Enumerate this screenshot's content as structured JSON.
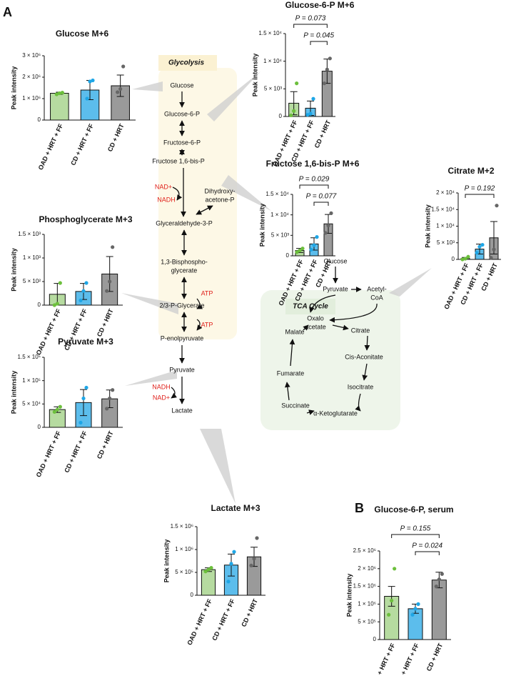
{
  "panel_labels": [
    "A",
    "B"
  ],
  "diagram": {
    "glycolysis_title": "Glycolysis",
    "tca_title": "TCA Cycle",
    "glycolysis_nodes": [
      "Glucose",
      "Glucose-6-P",
      "Fructose-6-P",
      "Fructose 1,6-bis-P",
      "NAD+",
      "NADH",
      "Dihydroxy-",
      "acetone-P",
      "Glyceraldehyde-3-P",
      "1,3-Bisphospho-",
      "glycerate",
      "ATP",
      "2/3-P-Glycerate",
      "ATP",
      "P-enolpyruvate",
      "Pyruvate",
      "NADH",
      "NAD+",
      "Lactate"
    ],
    "tca_nodes": [
      "Glucose",
      "Pyruvate",
      "Acetyl-",
      "CoA",
      "Oxalo",
      "acetate",
      "Citrate",
      "Cis-Aconitate",
      "Isocitrate",
      "α-Ketoglutarate",
      "Succinate",
      "Fumarate",
      "Malate"
    ]
  },
  "chart_data": [
    {
      "type": "bar",
      "title": "Glucose M+6",
      "ylabel": "Peak intensity",
      "categories": [
        "OAD + HRT + FF",
        "CD + HRT + FF",
        "CD + HRT"
      ],
      "colors": [
        "#b6dba0",
        "#5cbdec",
        "#9a9a9a"
      ],
      "point_colors": [
        "#6cbf3c",
        "#1ea6e6",
        "#666666"
      ],
      "values": [
        1250000,
        1400000,
        1600000
      ],
      "errors": [
        50000,
        450000,
        500000
      ],
      "points": [
        [
          1200000,
          1250000,
          1280000
        ],
        [
          1000000,
          1800000,
          1850000
        ],
        [
          1300000,
          1450000,
          2500000
        ]
      ],
      "ylim": [
        0,
        3000000
      ],
      "yticks": [
        0,
        {
          "value": 1000000,
          "label": "1 × 10⁶"
        },
        {
          "value": 2000000,
          "label": "2 × 10⁶"
        },
        {
          "value": 3000000,
          "label": "3 × 10⁶"
        }
      ],
      "comparisons": []
    },
    {
      "type": "bar",
      "title": "Glucose-6-P M+6",
      "ylabel": "Peak intensity",
      "categories": [
        "OAD + HRT + FF",
        "CD + HRT + FF",
        "CD + HRT"
      ],
      "colors": [
        "#b6dba0",
        "#5cbdec",
        "#9a9a9a"
      ],
      "point_colors": [
        "#6cbf3c",
        "#1ea6e6",
        "#666666"
      ],
      "values": [
        2400,
        1500,
        8200
      ],
      "errors": [
        2100,
        1300,
        2200
      ],
      "points": [
        [
          200,
          1000,
          6000
        ],
        [
          300,
          500,
          3200
        ],
        [
          6000,
          8500,
          10500
        ]
      ],
      "ylim": [
        0,
        15000
      ],
      "yticks": [
        0,
        {
          "value": 5000,
          "label": "5 × 10³"
        },
        {
          "value": 10000,
          "label": "1 × 10⁴"
        },
        {
          "value": 15000,
          "label": "1.5 × 10⁴"
        }
      ],
      "comparisons": [
        {
          "label": "P = 0.073",
          "groups": [
            "OAD + HRT + FF",
            "CD + HRT"
          ]
        },
        {
          "label": "P = 0.045",
          "groups": [
            "CD + HRT + FF",
            "CD + HRT"
          ]
        }
      ]
    },
    {
      "type": "bar",
      "title": "Fructose 1,6-bis-P  M+6",
      "ylabel": "Peak intensity",
      "categories": [
        "OAD + HRT + FF",
        "CD + HRT + FF",
        "CD + HRT"
      ],
      "colors": [
        "#b6dba0",
        "#5cbdec",
        "#9a9a9a"
      ],
      "point_colors": [
        "#6cbf3c",
        "#1ea6e6",
        "#666666"
      ],
      "values": [
        1300,
        2900,
        7800
      ],
      "errors": [
        500,
        1500,
        2300
      ],
      "points": [
        [
          900,
          1300,
          1800
        ],
        [
          1500,
          2600,
          4600
        ],
        [
          5600,
          7400,
          10400
        ]
      ],
      "ylim": [
        0,
        15000
      ],
      "yticks": [
        0,
        {
          "value": 5000,
          "label": "5 × 10³"
        },
        {
          "value": 10000,
          "label": "1 × 10⁴"
        },
        {
          "value": 15000,
          "label": "1.5 × 10⁴"
        }
      ],
      "comparisons": [
        {
          "label": "P = 0.029",
          "groups": [
            "OAD + HRT + FF",
            "CD + HRT"
          ]
        },
        {
          "label": "P = 0.077",
          "groups": [
            "CD + HRT + FF",
            "CD + HRT"
          ]
        }
      ]
    },
    {
      "type": "bar",
      "title": "Phosphoglycerate M+3",
      "ylabel": "Peak intensity",
      "categories": [
        "OAD + HRT + FF",
        "CD + HRT + FF",
        "CD + HRT"
      ],
      "colors": [
        "#b6dba0",
        "#5cbdec",
        "#9a9a9a"
      ],
      "point_colors": [
        "#6cbf3c",
        "#1ea6e6",
        "#666666"
      ],
      "values": [
        230,
        290,
        660
      ],
      "errors": [
        230,
        170,
        370
      ],
      "points": [
        [
          0,
          30,
          470
        ],
        [
          100,
          300,
          470
        ],
        [
          300,
          500,
          1230
        ]
      ],
      "ylim": [
        0,
        1500
      ],
      "yticks": [
        0,
        {
          "value": 500,
          "label": "5 × 10²"
        },
        {
          "value": 1000,
          "label": "1 × 10³"
        },
        {
          "value": 1500,
          "label": "1.5 × 10³"
        }
      ],
      "comparisons": []
    },
    {
      "type": "bar",
      "title": "Citrate M+2",
      "ylabel": "Peak intensity",
      "categories": [
        "OAD + HRT + FF",
        "CD + HRT + FF",
        "CD + HRT"
      ],
      "colors": [
        "#b6dba0",
        "#5cbdec",
        "#9a9a9a"
      ],
      "point_colors": [
        "#6cbf3c",
        "#1ea6e6",
        "#666666"
      ],
      "values": [
        300,
        3100,
        6500
      ],
      "errors": [
        300,
        1500,
        4900
      ],
      "points": [
        [
          0,
          200,
          800
        ],
        [
          2000,
          3800,
          4400
        ],
        [
          500,
          3000,
          16200
        ]
      ],
      "ylim": [
        0,
        20000
      ],
      "yticks": [
        0,
        {
          "value": 5000,
          "label": "5 × 10³"
        },
        {
          "value": 10000,
          "label": "1 × 10⁴"
        },
        {
          "value": 15000,
          "label": "1.5 × 10⁴"
        },
        {
          "value": 20000,
          "label": "2 × 10⁴"
        }
      ],
      "comparisons": [
        {
          "label": "P = 0.192",
          "groups": [
            "OAD + HRT + FF",
            "CD + HRT"
          ]
        }
      ]
    },
    {
      "type": "bar",
      "title": "Pyruvate M+3",
      "ylabel": "Peak intensity",
      "categories": [
        "OAD + HRT + FF",
        "CD + HRT + FF",
        "CD + HRT"
      ],
      "colors": [
        "#b6dba0",
        "#5cbdec",
        "#9a9a9a"
      ],
      "point_colors": [
        "#6cbf3c",
        "#1ea6e6",
        "#666666"
      ],
      "values": [
        38000,
        53000,
        61000
      ],
      "errors": [
        6000,
        28000,
        19000
      ],
      "points": [
        [
          33000,
          38000,
          44000
        ],
        [
          10000,
          62000,
          85000
        ],
        [
          40000,
          62000,
          80000
        ]
      ],
      "ylim": [
        0,
        150000
      ],
      "yticks": [
        0,
        {
          "value": 50000,
          "label": "5 × 10⁴"
        },
        {
          "value": 100000,
          "label": "1 × 10⁵"
        },
        {
          "value": 150000,
          "label": "1.5 × 10⁵"
        }
      ],
      "comparisons": []
    },
    {
      "type": "bar",
      "title": "Lactate M+3",
      "ylabel": "Peak intensity",
      "categories": [
        "OAD + HRT + FF",
        "CD + HRT + FF",
        "CD + HRT"
      ],
      "colors": [
        "#b6dba0",
        "#5cbdec",
        "#9a9a9a"
      ],
      "point_colors": [
        "#6cbf3c",
        "#1ea6e6",
        "#666666"
      ],
      "values": [
        560000,
        660000,
        840000
      ],
      "errors": [
        40000,
        240000,
        210000
      ],
      "points": [
        [
          520000,
          560000,
          600000
        ],
        [
          300000,
          690000,
          950000
        ],
        [
          650000,
          800000,
          1250000
        ]
      ],
      "ylim": [
        0,
        1500000
      ],
      "yticks": [
        0,
        {
          "value": 500000,
          "label": "5 × 10⁵"
        },
        {
          "value": 1000000,
          "label": "1 × 10⁶"
        },
        {
          "value": 1500000,
          "label": "1.5 × 10⁶"
        }
      ],
      "comparisons": []
    },
    {
      "type": "bar",
      "title": "Glucose-6-P, serum",
      "ylabel": "Peak intensity",
      "categories": [
        "OAD + HRT + FF",
        "CD + HRT + FF",
        "CD + HRT"
      ],
      "colors": [
        "#b6dba0",
        "#5cbdec",
        "#9a9a9a"
      ],
      "point_colors": [
        "#6cbf3c",
        "#1ea6e6",
        "#666666"
      ],
      "values": [
        1220000,
        870000,
        1680000
      ],
      "errors": [
        280000,
        130000,
        220000
      ],
      "points": [
        [
          700000,
          1100000,
          2000000
        ],
        [
          700000,
          870000,
          1000000
        ],
        [
          1500000,
          1700000,
          1850000
        ]
      ],
      "ylim": [
        0,
        2500000
      ],
      "yticks": [
        0,
        {
          "value": 500000,
          "label": "5 × 10⁵"
        },
        {
          "value": 1000000,
          "label": "1 × 10⁶"
        },
        {
          "value": 1500000,
          "label": "1.5 × 10⁶"
        },
        {
          "value": 2000000,
          "label": "2 × 10⁶"
        },
        {
          "value": 2500000,
          "label": "2.5 × 10⁶"
        }
      ],
      "comparisons": [
        {
          "label": "P = 0.155",
          "groups": [
            "OAD + HRT + FF",
            "CD + HRT"
          ]
        },
        {
          "label": "P = 0.024",
          "groups": [
            "CD + HRT + FF",
            "CD + HRT"
          ]
        }
      ]
    }
  ]
}
